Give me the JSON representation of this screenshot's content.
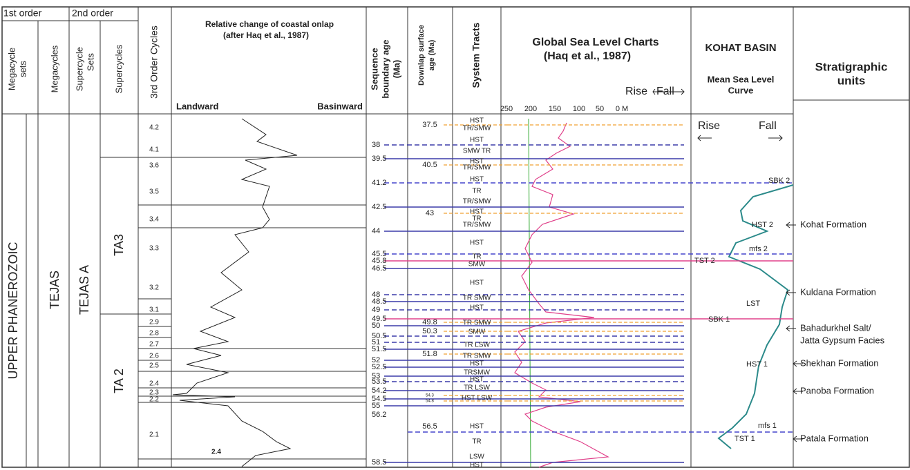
{
  "header": {
    "first_order": "1st order",
    "second_order": "2nd order",
    "megacycle_sets": [
      "Megacycle",
      "sets"
    ],
    "megacycles": "Megacycles",
    "supercycle_sets": [
      "Supercycle",
      "Sets"
    ],
    "supercycles": "Supercycles",
    "third_order": "3rd Order Cycles",
    "onlap_title": [
      "Relative change of coastal onlap",
      "(after Haq et al., 1987)"
    ],
    "landward": "Landward",
    "basinward": "Basinward",
    "sequence_boundary": [
      "Sequence",
      "boundary age",
      "(Ma)"
    ],
    "downlap": [
      "Downlap surface",
      "age (Ma)"
    ],
    "system_tracts": "System Tracts",
    "global_title": [
      "Global Sea Level Charts",
      "(Haq et al., 1987)"
    ],
    "rise": "Rise",
    "fall": "Fall",
    "scale": [
      "250",
      "200",
      "150",
      "100",
      "50",
      "0 M"
    ],
    "kohat_title": "KOHAT BASIN",
    "msl": [
      "Mean Sea Level",
      "Curve"
    ],
    "strat_units": [
      "Stratigraphic",
      "units"
    ]
  },
  "body": {
    "upper_phanerozoic": "UPPER PHANEROZOIC",
    "tejas": "TEJAS",
    "tejas_a": "TEJAS A",
    "ta3": "TA3",
    "ta2": "TA 2",
    "cycles": [
      "4.2",
      "4.1",
      "3.6",
      "3.5",
      "3.4",
      "3.3",
      "3.2",
      "3.1",
      "2.9",
      "2.8",
      "2.7",
      "2.6",
      "2.5",
      "2.4",
      "2.3",
      "2.2",
      "2.1"
    ],
    "onlap_label": "2.4",
    "boundary_ages": [
      "38",
      "39.5",
      "41.2",
      "42.5",
      "44",
      "45.5",
      "45.8",
      "46.5",
      "48",
      "48.5",
      "49",
      "49.5",
      "50",
      "50.5",
      "51",
      "51.5",
      "52",
      "52.5",
      "53",
      "53.5",
      "54.2",
      "54.5",
      "55",
      "56.2",
      "58.5"
    ],
    "downlap_ages": [
      "37.5",
      "40.5",
      "43",
      "49.8",
      "50.3",
      "51.8",
      "54.3",
      "54.8",
      "56.5"
    ],
    "tracts": [
      "HST",
      "TR/SMW",
      "HST",
      "SMW TR",
      "HST",
      "TR/SMW",
      "HST",
      "TR",
      "TR/SMW",
      "HST",
      "TR",
      "TR/SMW",
      "HST",
      "TR",
      "SMW",
      "HST",
      "TR SMW",
      "HST",
      "TR SMW",
      "SMW",
      "TR LSW",
      "TR SMW",
      "HST",
      "TRSMW",
      "HST",
      "TR LSW",
      "HST LSW",
      "HST",
      "TR",
      "LSW",
      "HST"
    ],
    "kohat": {
      "rise": "Rise",
      "fall": "Fall",
      "labels": [
        "SBK 2",
        "HST 2",
        "mfs 2",
        "TST 2",
        "LST",
        "SBK 1",
        "HST 1",
        "mfs 1",
        "TST 1"
      ]
    },
    "units": [
      "Kohat Formation",
      "Kuldana Formation",
      "Bahadurkhel Salt/",
      "Jatta Gypsum Facies",
      "Shekhan Formation",
      "Panoba Formation",
      "Patala Formation"
    ]
  }
}
